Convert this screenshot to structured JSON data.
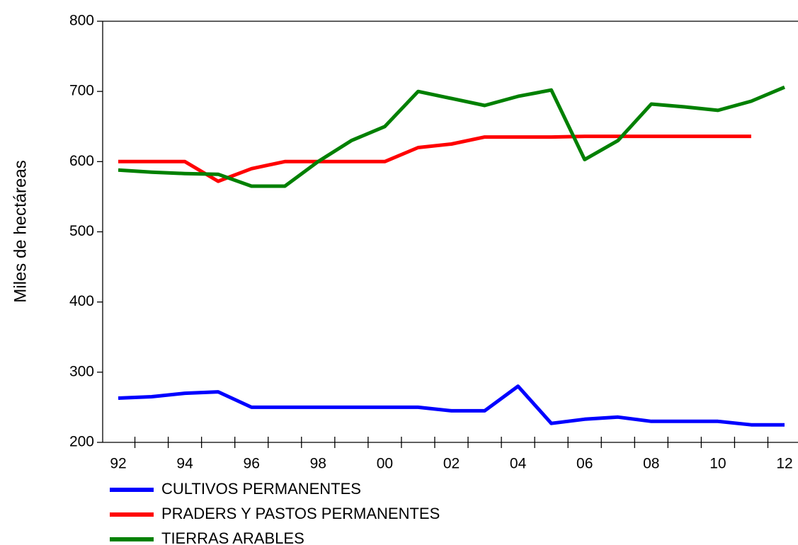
{
  "chart_data": {
    "type": "line",
    "ylabel": "Miles de hectáreas",
    "categories": [
      "92",
      null,
      "94",
      null,
      "96",
      null,
      "98",
      null,
      "00",
      null,
      "02",
      null,
      "04",
      null,
      "06",
      null,
      "08",
      null,
      "10",
      null,
      "12"
    ],
    "series": [
      {
        "name": "CULTIVOS PERMANENTES",
        "color": "#0000ff",
        "values": [
          263,
          265,
          270,
          272,
          250,
          250,
          250,
          250,
          250,
          250,
          245,
          245,
          280,
          227,
          233,
          236,
          230,
          230,
          230,
          225,
          225
        ]
      },
      {
        "name": "PRADERS Y PASTOS PERMANENTES",
        "color": "#ff0000",
        "values": [
          600,
          600,
          600,
          572,
          590,
          600,
          600,
          600,
          600,
          620,
          625,
          635,
          635,
          635,
          636,
          636,
          636,
          636,
          636,
          636,
          null
        ]
      },
      {
        "name": "TIERRAS ARABLES",
        "color": "#008000",
        "values": [
          588,
          585,
          583,
          582,
          565,
          565,
          600,
          630,
          650,
          700,
          690,
          680,
          693,
          702,
          603,
          630,
          682,
          678,
          673,
          686,
          706
        ]
      }
    ],
    "ylim": [
      200,
      800
    ],
    "yticks": [
      200,
      300,
      400,
      500,
      600,
      700,
      800
    ],
    "grid": false,
    "legend": "bottom-left"
  }
}
